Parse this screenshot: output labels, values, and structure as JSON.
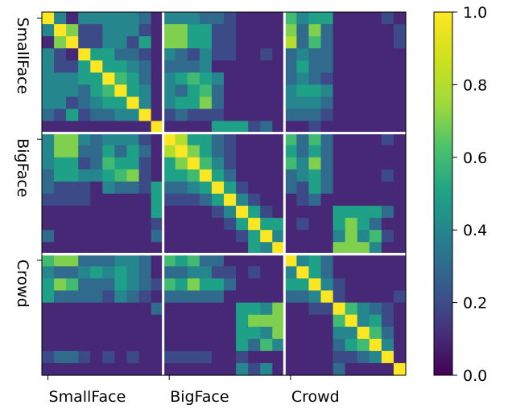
{
  "chart_data": {
    "type": "heatmap",
    "title": "",
    "xlabel": "",
    "ylabel": "",
    "groups": [
      "SmallFace",
      "BigFace",
      "Crowd"
    ],
    "x_tick_labels": [
      "SmallFace",
      "BigFace",
      "Crowd"
    ],
    "y_tick_labels": [
      "SmallFace",
      "BigFace",
      "Crowd"
    ],
    "group_size": 10,
    "colorbar": {
      "range": [
        0.0,
        1.0
      ],
      "tick_values": [
        0.0,
        0.2,
        0.4,
        0.6,
        0.8,
        1.0
      ],
      "tick_labels": [
        "0.0",
        "0.2",
        "0.4",
        "0.6",
        "0.8",
        "1.0"
      ],
      "colormap": "viridis"
    },
    "values": [
      [
        1.0,
        0.4,
        0.1,
        0.4,
        0.4,
        0.4,
        0.4,
        0.4,
        0.3,
        0.1,
        0.4,
        0.4,
        0.4,
        0.3,
        0.3,
        0.2,
        0.1,
        0.1,
        0.1,
        0.1,
        0.6,
        0.4,
        0.5,
        0.5,
        0.1,
        0.1,
        0.1,
        0.1,
        0.2,
        0.1
      ],
      [
        0.4,
        1.0,
        0.7,
        0.2,
        0.2,
        0.4,
        0.4,
        0.4,
        0.2,
        0.1,
        0.7,
        0.7,
        0.5,
        0.5,
        0.2,
        0.2,
        0.1,
        0.1,
        0.1,
        0.1,
        0.7,
        0.3,
        0.7,
        0.3,
        0.1,
        0.1,
        0.1,
        0.1,
        0.1,
        0.2
      ],
      [
        0.1,
        0.7,
        1.0,
        0.2,
        0.2,
        0.4,
        0.4,
        0.2,
        0.5,
        0.1,
        0.7,
        0.7,
        0.5,
        0.5,
        0.2,
        0.2,
        0.1,
        0.1,
        0.1,
        0.1,
        0.8,
        0.3,
        0.6,
        0.3,
        0.1,
        0.1,
        0.1,
        0.1,
        0.1,
        0.2
      ],
      [
        0.4,
        0.2,
        0.1,
        1.0,
        0.5,
        0.5,
        0.3,
        0.3,
        0.2,
        0.1,
        0.4,
        0.3,
        0.2,
        0.4,
        0.2,
        0.2,
        0.1,
        0.1,
        0.2,
        0.1,
        0.3,
        0.4,
        0.3,
        0.3,
        0.1,
        0.1,
        0.1,
        0.1,
        0.1,
        0.1
      ],
      [
        0.4,
        0.2,
        0.2,
        0.5,
        1.0,
        0.5,
        0.5,
        0.4,
        0.3,
        0.1,
        0.3,
        0.3,
        0.3,
        0.4,
        0.1,
        0.1,
        0.1,
        0.1,
        0.1,
        0.1,
        0.3,
        0.5,
        0.3,
        0.3,
        0.1,
        0.1,
        0.1,
        0.1,
        0.1,
        0.1
      ],
      [
        0.4,
        0.4,
        0.4,
        0.5,
        0.5,
        1.0,
        0.6,
        0.5,
        0.3,
        0.1,
        0.4,
        0.5,
        0.6,
        0.5,
        0.4,
        0.1,
        0.1,
        0.1,
        0.1,
        0.1,
        0.3,
        0.4,
        0.3,
        0.2,
        0.1,
        0.1,
        0.1,
        0.1,
        0.1,
        0.1
      ],
      [
        0.4,
        0.4,
        0.4,
        0.3,
        0.5,
        0.6,
        1.0,
        0.5,
        0.4,
        0.1,
        0.4,
        0.3,
        0.5,
        0.6,
        0.3,
        0.1,
        0.1,
        0.1,
        0.1,
        0.1,
        0.4,
        0.5,
        0.5,
        0.4,
        0.1,
        0.1,
        0.1,
        0.1,
        0.1,
        0.1
      ],
      [
        0.4,
        0.4,
        0.2,
        0.3,
        0.4,
        0.5,
        0.5,
        1.0,
        0.4,
        0.1,
        0.4,
        0.5,
        0.5,
        0.7,
        0.3,
        0.1,
        0.1,
        0.1,
        0.1,
        0.1,
        0.4,
        0.4,
        0.4,
        0.3,
        0.1,
        0.1,
        0.1,
        0.1,
        0.1,
        0.1
      ],
      [
        0.3,
        0.2,
        0.5,
        0.2,
        0.3,
        0.3,
        0.4,
        0.4,
        1.0,
        0.1,
        0.2,
        0.3,
        0.2,
        0.2,
        0.2,
        0.1,
        0.1,
        0.1,
        0.1,
        0.1,
        0.3,
        0.3,
        0.3,
        0.2,
        0.1,
        0.1,
        0.1,
        0.1,
        0.1,
        0.1
      ],
      [
        0.1,
        0.1,
        0.1,
        0.1,
        0.1,
        0.1,
        0.1,
        0.1,
        0.1,
        1.0,
        0.1,
        0.1,
        0.1,
        0.1,
        0.5,
        0.5,
        0.5,
        0.2,
        0.3,
        0.1,
        0.1,
        0.1,
        0.2,
        0.1,
        0.1,
        0.1,
        0.1,
        0.1,
        0.1,
        0.1
      ],
      [
        0.4,
        0.7,
        0.7,
        0.4,
        0.3,
        0.4,
        0.4,
        0.4,
        0.2,
        0.1,
        1.0,
        0.8,
        0.5,
        0.5,
        0.3,
        0.2,
        0.1,
        0.1,
        0.1,
        0.1,
        0.6,
        0.3,
        0.6,
        0.3,
        0.1,
        0.1,
        0.1,
        0.1,
        0.2,
        0.1
      ],
      [
        0.4,
        0.7,
        0.7,
        0.3,
        0.3,
        0.5,
        0.3,
        0.5,
        0.3,
        0.1,
        0.8,
        1.0,
        0.7,
        0.5,
        0.3,
        0.2,
        0.1,
        0.1,
        0.1,
        0.1,
        0.5,
        0.3,
        0.5,
        0.3,
        0.1,
        0.1,
        0.1,
        0.1,
        0.1,
        0.1
      ],
      [
        0.4,
        0.5,
        0.5,
        0.2,
        0.3,
        0.6,
        0.5,
        0.5,
        0.2,
        0.1,
        0.5,
        0.7,
        1.0,
        0.6,
        0.4,
        0.2,
        0.1,
        0.1,
        0.1,
        0.1,
        0.6,
        0.4,
        0.7,
        0.3,
        0.1,
        0.1,
        0.1,
        0.1,
        0.1,
        0.1
      ],
      [
        0.3,
        0.5,
        0.5,
        0.4,
        0.4,
        0.5,
        0.6,
        0.7,
        0.2,
        0.1,
        0.5,
        0.5,
        0.6,
        1.0,
        0.5,
        0.3,
        0.1,
        0.1,
        0.1,
        0.1,
        0.3,
        0.4,
        0.5,
        0.3,
        0.1,
        0.1,
        0.1,
        0.1,
        0.2,
        0.1
      ],
      [
        0.3,
        0.2,
        0.2,
        0.2,
        0.1,
        0.4,
        0.3,
        0.3,
        0.2,
        0.5,
        0.3,
        0.3,
        0.4,
        0.5,
        1.0,
        0.5,
        0.2,
        0.1,
        0.1,
        0.1,
        0.3,
        0.2,
        0.5,
        0.3,
        0.1,
        0.1,
        0.1,
        0.1,
        0.1,
        0.1
      ],
      [
        0.2,
        0.2,
        0.2,
        0.2,
        0.1,
        0.1,
        0.1,
        0.1,
        0.1,
        0.5,
        0.2,
        0.2,
        0.2,
        0.3,
        0.5,
        1.0,
        0.4,
        0.2,
        0.1,
        0.1,
        0.1,
        0.2,
        0.3,
        0.1,
        0.1,
        0.1,
        0.1,
        0.1,
        0.1,
        0.1
      ],
      [
        0.1,
        0.1,
        0.1,
        0.1,
        0.1,
        0.1,
        0.1,
        0.1,
        0.1,
        0.5,
        0.1,
        0.1,
        0.1,
        0.1,
        0.2,
        0.4,
        1.0,
        0.5,
        0.2,
        0.1,
        0.1,
        0.1,
        0.1,
        0.1,
        0.5,
        0.5,
        0.5,
        0.5,
        0.3,
        0.1
      ],
      [
        0.1,
        0.1,
        0.1,
        0.1,
        0.1,
        0.1,
        0.1,
        0.1,
        0.1,
        0.2,
        0.1,
        0.1,
        0.1,
        0.1,
        0.1,
        0.2,
        0.5,
        1.0,
        0.5,
        0.5,
        0.1,
        0.2,
        0.1,
        0.1,
        0.5,
        0.7,
        0.5,
        0.3,
        0.1,
        0.1
      ],
      [
        0.3,
        0.1,
        0.1,
        0.1,
        0.1,
        0.1,
        0.1,
        0.1,
        0.1,
        0.3,
        0.1,
        0.1,
        0.1,
        0.1,
        0.1,
        0.1,
        0.2,
        0.5,
        1.0,
        0.4,
        0.1,
        0.1,
        0.1,
        0.1,
        0.4,
        0.7,
        0.4,
        0.6,
        0.2,
        0.1
      ],
      [
        0.1,
        0.1,
        0.1,
        0.1,
        0.1,
        0.1,
        0.1,
        0.1,
        0.1,
        0.1,
        0.1,
        0.1,
        0.1,
        0.1,
        0.1,
        0.1,
        0.1,
        0.5,
        0.4,
        1.0,
        0.1,
        0.1,
        0.1,
        0.1,
        0.7,
        0.7,
        0.7,
        0.4,
        0.1,
        0.1
      ],
      [
        0.6,
        0.7,
        0.7,
        0.3,
        0.3,
        0.3,
        0.4,
        0.4,
        0.3,
        0.1,
        0.6,
        0.5,
        0.6,
        0.3,
        0.3,
        0.1,
        0.1,
        0.1,
        0.1,
        0.1,
        1.0,
        0.4,
        0.5,
        0.3,
        0.1,
        0.1,
        0.1,
        0.1,
        0.1,
        0.1
      ],
      [
        0.4,
        0.3,
        0.3,
        0.4,
        0.5,
        0.4,
        0.5,
        0.4,
        0.3,
        0.1,
        0.3,
        0.3,
        0.4,
        0.4,
        0.2,
        0.2,
        0.1,
        0.2,
        0.1,
        0.1,
        0.4,
        1.0,
        0.5,
        0.3,
        0.1,
        0.1,
        0.1,
        0.1,
        0.1,
        0.1
      ],
      [
        0.5,
        0.7,
        0.6,
        0.3,
        0.3,
        0.3,
        0.5,
        0.4,
        0.3,
        0.2,
        0.6,
        0.5,
        0.7,
        0.5,
        0.5,
        0.3,
        0.1,
        0.1,
        0.1,
        0.1,
        0.5,
        0.5,
        1.0,
        0.4,
        0.2,
        0.1,
        0.1,
        0.1,
        0.1,
        0.1
      ],
      [
        0.5,
        0.3,
        0.3,
        0.3,
        0.3,
        0.2,
        0.4,
        0.3,
        0.2,
        0.1,
        0.3,
        0.3,
        0.3,
        0.3,
        0.3,
        0.1,
        0.1,
        0.1,
        0.1,
        0.1,
        0.3,
        0.3,
        0.4,
        1.0,
        0.2,
        0.1,
        0.1,
        0.1,
        0.1,
        0.2
      ],
      [
        0.1,
        0.1,
        0.1,
        0.1,
        0.1,
        0.1,
        0.1,
        0.1,
        0.1,
        0.3,
        0.1,
        0.1,
        0.1,
        0.1,
        0.1,
        0.1,
        0.5,
        0.5,
        0.4,
        0.7,
        0.1,
        0.1,
        0.2,
        0.2,
        1.0,
        0.6,
        0.4,
        0.3,
        0.2,
        0.1
      ],
      [
        0.1,
        0.1,
        0.1,
        0.1,
        0.1,
        0.1,
        0.1,
        0.1,
        0.1,
        0.1,
        0.1,
        0.1,
        0.1,
        0.1,
        0.1,
        0.1,
        0.5,
        0.7,
        0.7,
        0.7,
        0.1,
        0.1,
        0.1,
        0.1,
        0.6,
        1.0,
        0.4,
        0.5,
        0.2,
        0.1
      ],
      [
        0.1,
        0.1,
        0.1,
        0.1,
        0.1,
        0.1,
        0.1,
        0.1,
        0.1,
        0.1,
        0.1,
        0.1,
        0.1,
        0.1,
        0.1,
        0.1,
        0.5,
        0.5,
        0.4,
        0.7,
        0.1,
        0.1,
        0.1,
        0.1,
        0.4,
        0.4,
        1.0,
        0.6,
        0.3,
        0.1
      ],
      [
        0.1,
        0.1,
        0.1,
        0.1,
        0.1,
        0.1,
        0.1,
        0.1,
        0.1,
        0.1,
        0.1,
        0.1,
        0.1,
        0.1,
        0.1,
        0.1,
        0.5,
        0.3,
        0.6,
        0.4,
        0.1,
        0.1,
        0.1,
        0.1,
        0.3,
        0.5,
        0.6,
        1.0,
        0.4,
        0.1
      ],
      [
        0.2,
        0.3,
        0.3,
        0.2,
        0.1,
        0.2,
        0.1,
        0.2,
        0.1,
        0.1,
        0.2,
        0.2,
        0.2,
        0.2,
        0.1,
        0.1,
        0.2,
        0.1,
        0.1,
        0.1,
        0.1,
        0.1,
        0.1,
        0.1,
        0.2,
        0.2,
        0.3,
        0.4,
        1.0,
        0.1
      ],
      [
        0.1,
        0.1,
        0.1,
        0.1,
        0.1,
        0.1,
        0.1,
        0.1,
        0.1,
        0.1,
        0.1,
        0.1,
        0.1,
        0.1,
        0.1,
        0.1,
        0.4,
        0.2,
        0.4,
        0.1,
        0.1,
        0.1,
        0.1,
        0.1,
        0.3,
        0.1,
        0.1,
        0.1,
        0.1,
        1.0
      ]
    ]
  }
}
